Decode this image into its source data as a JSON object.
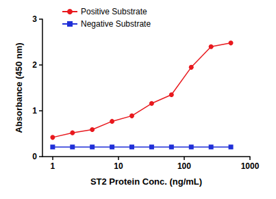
{
  "chart_data": {
    "type": "line",
    "x_label": "ST2 Protein Conc. (ng/mL)",
    "y_label": "Absorbance (450 nm)",
    "x": [
      1,
      2,
      4,
      8,
      16,
      32,
      64,
      128,
      256,
      512
    ],
    "series": [
      {
        "name": "Positive Substrate",
        "color": "#e8191e",
        "marker": "circle",
        "values": [
          0.42,
          0.52,
          0.59,
          0.77,
          0.89,
          1.16,
          1.35,
          1.95,
          2.4,
          2.48
        ]
      },
      {
        "name": "Negative Substrate",
        "color": "#1f2fd8",
        "marker": "square",
        "values": [
          0.21,
          0.21,
          0.21,
          0.21,
          0.21,
          0.21,
          0.21,
          0.21,
          0.21,
          0.21
        ]
      }
    ],
    "log": "x",
    "xlim": [
      0.7,
      1000
    ],
    "xticks": [
      1,
      10,
      100,
      1000
    ],
    "ylim": [
      0,
      3
    ],
    "yticks": [
      0,
      1,
      2,
      3
    ],
    "grid": false,
    "legend": "upper left"
  }
}
